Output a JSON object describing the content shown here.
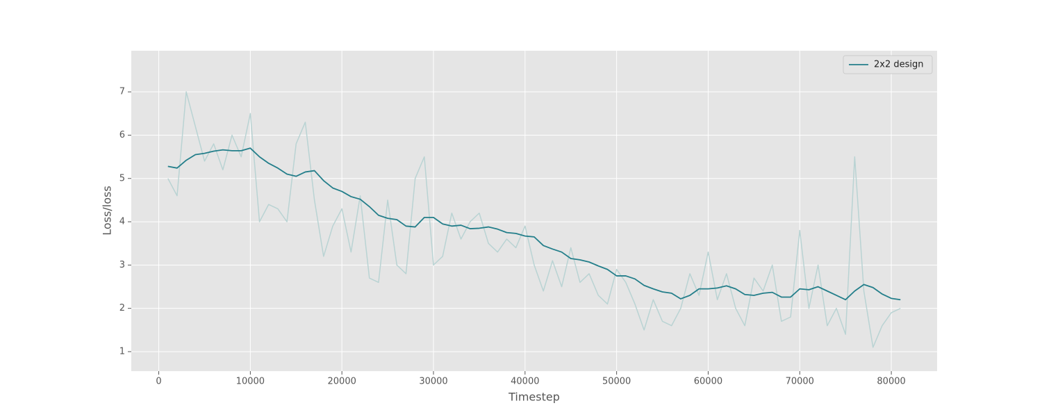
{
  "chart_data": {
    "type": "line",
    "xlabel": "Timestep",
    "ylabel": "Loss/loss",
    "x": [
      1000,
      2000,
      3000,
      4000,
      5000,
      6000,
      7000,
      8000,
      9000,
      10000,
      11000,
      12000,
      13000,
      14000,
      15000,
      16000,
      17000,
      18000,
      19000,
      20000,
      21000,
      22000,
      23000,
      24000,
      25000,
      26000,
      27000,
      28000,
      29000,
      30000,
      31000,
      32000,
      33000,
      34000,
      35000,
      36000,
      37000,
      38000,
      39000,
      40000,
      41000,
      42000,
      43000,
      44000,
      45000,
      46000,
      47000,
      48000,
      49000,
      50000,
      51000,
      52000,
      53000,
      54000,
      55000,
      56000,
      57000,
      58000,
      59000,
      60000,
      61000,
      62000,
      63000,
      64000,
      65000,
      66000,
      67000,
      68000,
      69000,
      70000,
      71000,
      72000,
      73000,
      74000,
      75000,
      76000,
      77000,
      78000,
      79000,
      80000,
      81000
    ],
    "series": [
      {
        "color": "#b9d3d3",
        "values": [
          5.0,
          4.6,
          7.0,
          6.2,
          5.4,
          5.8,
          5.2,
          6.0,
          5.5,
          6.5,
          4.0,
          4.4,
          4.3,
          4.0,
          5.8,
          6.3,
          4.5,
          3.2,
          3.9,
          4.3,
          3.3,
          4.6,
          2.7,
          2.6,
          4.5,
          3.0,
          2.8,
          5.0,
          5.5,
          3.0,
          3.2,
          4.2,
          3.6,
          4.0,
          4.2,
          3.5,
          3.3,
          3.6,
          3.4,
          3.9,
          3.0,
          2.4,
          3.1,
          2.5,
          3.4,
          2.6,
          2.8,
          2.3,
          2.1,
          2.9,
          2.6,
          2.1,
          1.5,
          2.2,
          1.7,
          1.6,
          2.0,
          2.8,
          2.3,
          3.3,
          2.2,
          2.8,
          2.0,
          1.6,
          2.7,
          2.4,
          3.0,
          1.7,
          1.8,
          3.8,
          2.0,
          3.0,
          1.6,
          2.0,
          1.4,
          5.5,
          2.4,
          1.1,
          1.6,
          1.9,
          2.0
        ]
      },
      {
        "name": "2x2 design",
        "color": "#237e8a",
        "values": [
          5.28,
          5.24,
          5.42,
          5.55,
          5.58,
          5.63,
          5.66,
          5.64,
          5.64,
          5.7,
          5.5,
          5.35,
          5.24,
          5.1,
          5.05,
          5.15,
          5.18,
          4.95,
          4.78,
          4.7,
          4.58,
          4.52,
          4.35,
          4.15,
          4.08,
          4.05,
          3.9,
          3.88,
          4.1,
          4.1,
          3.95,
          3.9,
          3.92,
          3.84,
          3.85,
          3.88,
          3.83,
          3.75,
          3.73,
          3.67,
          3.65,
          3.45,
          3.37,
          3.3,
          3.15,
          3.12,
          3.07,
          2.98,
          2.9,
          2.75,
          2.75,
          2.68,
          2.53,
          2.45,
          2.38,
          2.35,
          2.22,
          2.3,
          2.45,
          2.45,
          2.47,
          2.52,
          2.45,
          2.32,
          2.3,
          2.35,
          2.37,
          2.26,
          2.26,
          2.45,
          2.43,
          2.5,
          2.4,
          2.3,
          2.2,
          2.4,
          2.55,
          2.48,
          2.33,
          2.23,
          2.2
        ]
      }
    ],
    "xlim": [
      -3000,
      85000
    ],
    "ylim": [
      0.55,
      7.95
    ],
    "xticks": [
      0,
      10000,
      20000,
      30000,
      40000,
      50000,
      60000,
      70000,
      80000
    ],
    "yticks": [
      1,
      2,
      3,
      4,
      5,
      6,
      7
    ],
    "grid": true,
    "legend": "upper right"
  }
}
